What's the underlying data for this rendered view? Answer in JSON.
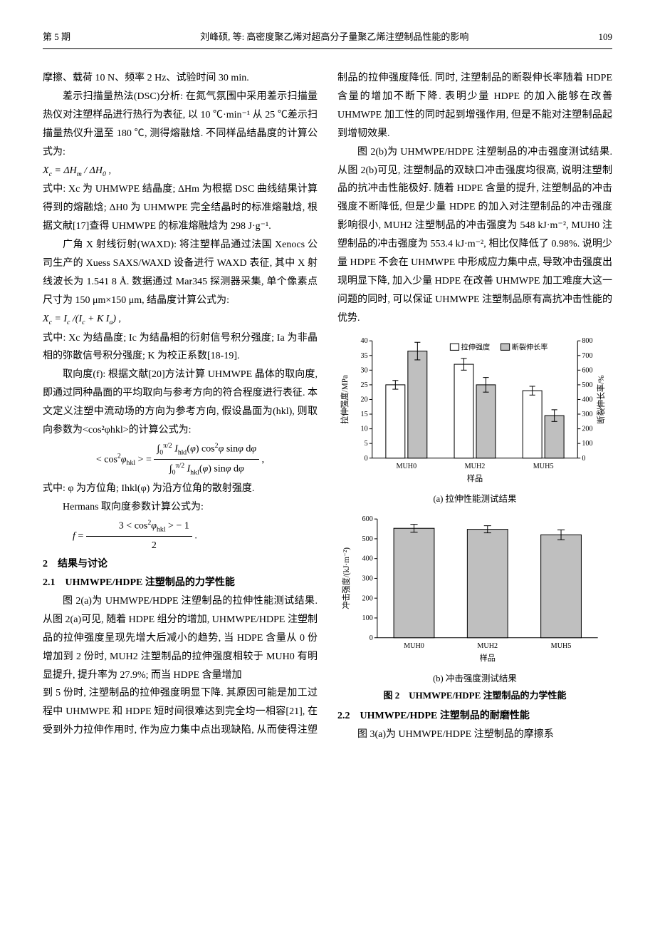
{
  "header": {
    "issue": "第 5 期",
    "title": "刘峰硕, 等: 高密度聚乙烯对超高分子量聚乙烯注塑制品性能的影响",
    "page": "109"
  },
  "col1": {
    "p1": "摩擦、载荷 10 N、频率 2 Hz、试验时间 30 min.",
    "p2": "差示扫描量热法(DSC)分析: 在氮气氛围中采用差示扫描量热仪对注塑样品进行热行为表征, 以 10 ℃·min⁻¹ 从 25 ℃差示扫描量热仪升温至 180 ℃, 测得熔融焓. 不同样品结晶度的计算公式为:",
    "eq1": "Xc = ΔHm / ΔH0 ,",
    "p3": "式中: Xc 为 UHMWPE 结晶度; ΔHm 为根据 DSC 曲线结果计算得到的熔融焓; ΔH0 为 UHMWPE 完全结晶时的标准熔融焓, 根据文献[17]查得 UHMWPE 的标准熔融焓为 298 J·g⁻¹.",
    "p4": "广角 X 射线衍射(WAXD): 将注塑样品通过法国 Xenocs 公司生产的 Xuess SAXS/WAXD 设备进行 WAXD 表征, 其中 X 射线波长为 1.541 8 Å. 数据通过 Mar345 探测器采集, 单个像素点尺寸为 150 μm×150 μm, 结晶度计算公式为:",
    "eq2": "Xc = Ic /(Ic + KIa) ,",
    "p5": "式中: Xc 为结晶度; Ic 为结晶相的衍射信号积分强度; Ia 为非晶相的弥散信号积分强度; K 为校正系数[18-19].",
    "p6": "取向度(f): 根据文献[20]方法计算 UHMWPE 晶体的取向度, 即通过同种晶面的平均取向与参考方向的符合程度进行表征. 本文定义注塑中流动场的方向为参考方向, 假设晶面为(hkl), 则取向参数为<cos²φhkl>的计算公式为:",
    "eq3": "< cos²φhkl > = ∫0^(π/2) Ihkl(φ) cos²φ sinφ dφ / ∫0^(π/2) Ihkl(φ) sinφ dφ ,",
    "p7": "式中: φ 为方位角; Ihkl(φ) 为沿方位角的散射强度.",
    "p8": "Hermans 取向度参数计算公式为:",
    "eq4": "f = (3 < cos²φhkl > − 1) / 2 .",
    "sec2": "2　结果与讨论",
    "sec21": "2.1　UHMWPE/HDPE 注塑制品的力学性能",
    "p9": "图 2(a)为 UHMWPE/HDPE 注塑制品的拉伸性能测试结果. 从图 2(a)可见, 随着 HDPE 组分的增加, UHMWPE/HDPE 注塑制品的拉伸强度呈现先增大后减小的趋势, 当 HDPE 含量从 0 份增加到 2 份时, MUH2 注塑制品的拉伸强度相较于 MUH0 有明显提升, 提升率为 27.9%; 而当 HDPE 含量增加"
  },
  "col2": {
    "p1": "到 5 份时, 注塑制品的拉伸强度明显下降. 其原因可能是加工过程中 UHMWPE 和 HDPE 短时间很难达到完全均一相容[21], 在受到外力拉伸作用时, 作为应力集中点出现缺陷, 从而使得注塑制品的拉伸强度降低. 同时, 注塑制品的断裂伸长率随着 HDPE 含量的增加不断下降. 表明少量 HDPE 的加入能够在改善 UHMWPE 加工性的同时起到增强作用, 但是不能对注塑制品起到增韧效果.",
    "p2": "图 2(b)为 UHMWPE/HDPE 注塑制品的冲击强度测试结果. 从图 2(b)可见, 注塑制品的双缺口冲击强度均很高, 说明注塑制品的抗冲击性能极好. 随着 HDPE 含量的提升, 注塑制品的冲击强度不断降低, 但是少量 HDPE 的加入对注塑制品的冲击强度影响很小, MUH2 注塑制品的冲击强度为 548 kJ·m⁻², MUH0 注塑制品的冲击强度为 553.4 kJ·m⁻², 相比仅降低了 0.98%. 说明少量 HDPE 不会在 UHMWPE 中形成应力集中点, 导致冲击强度出现明显下降, 加入少量 HDPE 在改善 UHMWPE 加工难度大这一问题的同时, 可以保证 UHMWPE 注塑制品原有高抗冲击性能的优势."
  },
  "fig2": {
    "cap_a": "(a) 拉伸性能测试结果",
    "cap_b": "(b) 冲击强度测试结果",
    "title": "图 2　UHMWPE/HDPE 注塑制品的力学性能",
    "sec22": "2.2　UHMWPE/HDPE 注塑制品的耐磨性能",
    "p_last": "图 3(a)为 UHMWPE/HDPE 注塑制品的摩擦系"
  },
  "chart_a": {
    "type": "bar-dual-axis",
    "categories": [
      "MUH0",
      "MUH2",
      "MUH5"
    ],
    "y1_label": "拉伸强度/MPa",
    "y2_label": "断裂伸长率/%",
    "x_label": "样品",
    "legend": [
      "拉伸强度",
      "断裂伸长率"
    ],
    "tensile_values": [
      25,
      32,
      23
    ],
    "tensile_err": [
      1.5,
      2,
      1.5
    ],
    "elong_values": [
      730,
      500,
      290
    ],
    "elong_err": [
      60,
      50,
      40
    ],
    "y1_lim": [
      0,
      40
    ],
    "y1_ticks": [
      0,
      5,
      10,
      15,
      20,
      25,
      30,
      35,
      40
    ],
    "y2_lim": [
      0,
      800
    ],
    "y2_ticks": [
      0,
      100,
      200,
      300,
      400,
      500,
      600,
      700,
      800
    ],
    "bar_color_tensile": "#ffffff",
    "bar_color_elong": "#bfbfbf",
    "bar_border": "#000000",
    "grid_color": "#000000",
    "font_size_axis": 11
  },
  "chart_b": {
    "type": "bar",
    "categories": [
      "MUH0",
      "MUH2",
      "MUH5"
    ],
    "y_label": "冲击强度/(kJ·m⁻²)",
    "x_label": "样品",
    "values": [
      553,
      548,
      520
    ],
    "err": [
      20,
      18,
      25
    ],
    "y_lim": [
      0,
      600
    ],
    "y_ticks": [
      0,
      100,
      200,
      300,
      400,
      500,
      600
    ],
    "bar_color": "#bfbfbf",
    "bar_border": "#000000",
    "font_size_axis": 11
  }
}
